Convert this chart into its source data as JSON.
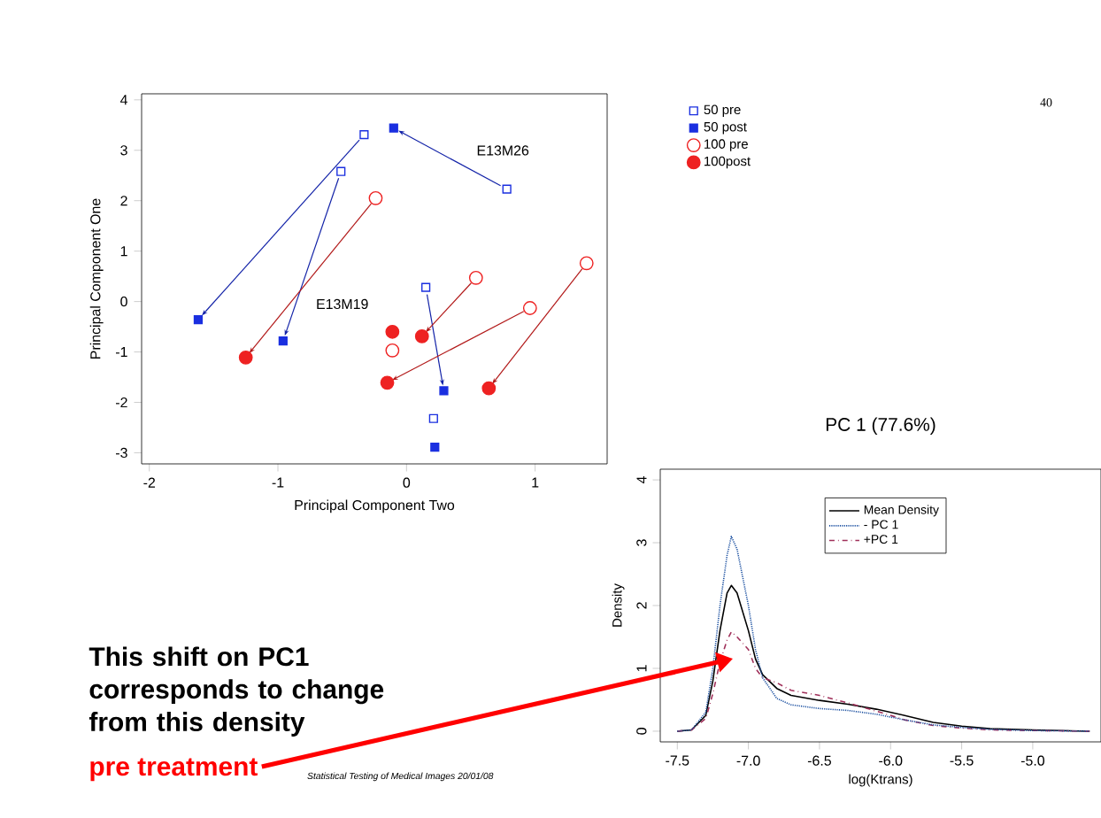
{
  "chart_data": [
    {
      "type": "scatter",
      "xlabel": "Principal Component Two",
      "ylabel": "Principal Component One",
      "xlim": [
        -2.06,
        1.56
      ],
      "ylim": [
        -3.22,
        4.12
      ],
      "xticks": [
        -2,
        -1,
        0,
        1
      ],
      "yticks": [
        -3,
        -2,
        -1,
        0,
        1,
        2,
        3,
        4
      ],
      "legend": "top right",
      "series": [
        {
          "name": "50 pre",
          "color": "#1a2fe0",
          "marker": "square",
          "x": [
            -0.33,
            -0.51,
            0.78,
            0.15,
            0.21
          ],
          "values": [
            3.31,
            2.58,
            2.23,
            0.28,
            -2.32
          ]
        },
        {
          "name": "50 post",
          "color": "#1a2fe0",
          "marker": "square",
          "x": [
            -1.62,
            -0.96,
            -0.1,
            0.29,
            0.22
          ],
          "values": [
            -0.36,
            -0.78,
            3.44,
            -1.77,
            -2.89
          ]
        },
        {
          "name": "100 pre",
          "color": "#ee2222",
          "marker": "circle",
          "x": [
            -0.24,
            0.54,
            0.96,
            1.4,
            -0.11
          ],
          "values": [
            2.05,
            0.47,
            -0.13,
            0.76,
            -0.97
          ]
        },
        {
          "name": "100post",
          "color": "#ee2222",
          "marker": "circle",
          "x": [
            -1.25,
            0.12,
            -0.15,
            0.64,
            -0.11
          ],
          "values": [
            -1.11,
            -0.69,
            -1.61,
            -1.72,
            -0.6
          ]
        }
      ],
      "annotations": [
        "E13M26",
        "E13M19"
      ]
    },
    {
      "type": "line",
      "title": "PC 1 (77.6%)",
      "xlabel": "log(Ktrans)",
      "ylabel": "Density",
      "xlim": [
        -7.62,
        -4.52
      ],
      "ylim": [
        -0.17,
        4.17
      ],
      "xticks": [
        -7.5,
        {
          "value": -7,
          "label": "-7.0"
        },
        -6.5,
        {
          "value": -6,
          "label": "-6.0"
        },
        -5.5,
        {
          "value": -5,
          "label": "-5.0"
        }
      ],
      "yticks": [
        0,
        1,
        2,
        3,
        4
      ],
      "legend": "top right",
      "x": [
        -7.5,
        -7.4,
        -7.3,
        -7.25,
        -7.2,
        -7.15,
        -7.12,
        -7.08,
        -7.0,
        -6.95,
        -6.9,
        -6.8,
        -6.7,
        -6.5,
        -6.3,
        -6.1,
        -5.9,
        -5.7,
        -5.5,
        -5.3,
        -5.0,
        -4.6
      ],
      "series": [
        {
          "name": "Mean Density",
          "color": "#000000",
          "line_style": "solid",
          "values": [
            0,
            0.02,
            0.25,
            0.8,
            1.6,
            2.2,
            2.32,
            2.2,
            1.6,
            1.15,
            0.9,
            0.68,
            0.57,
            0.49,
            0.43,
            0.35,
            0.25,
            0.14,
            0.08,
            0.04,
            0.02,
            0
          ]
        },
        {
          "name": "- PC 1",
          "color": "#1a4fa0",
          "line_style": "dotted",
          "values": [
            0,
            0.02,
            0.3,
            1.0,
            2.0,
            2.8,
            3.1,
            2.9,
            2.0,
            1.3,
            0.85,
            0.52,
            0.42,
            0.36,
            0.33,
            0.27,
            0.18,
            0.1,
            0.06,
            0.03,
            0.01,
            0
          ]
        },
        {
          "name": "+PC 1",
          "color": "#a0305a",
          "line_style": "dashdot",
          "values": [
            0,
            0.02,
            0.2,
            0.6,
            1.1,
            1.45,
            1.58,
            1.5,
            1.3,
            1.0,
            0.85,
            0.77,
            0.65,
            0.57,
            0.45,
            0.32,
            0.18,
            0.09,
            0.05,
            0.02,
            0.01,
            0
          ]
        }
      ],
      "annotations": [
        "40",
        "Statistical Testing of Medical Images  20/01/08",
        "This shift on PC1 corresponds to change from this density",
        "pre treatment"
      ]
    }
  ]
}
